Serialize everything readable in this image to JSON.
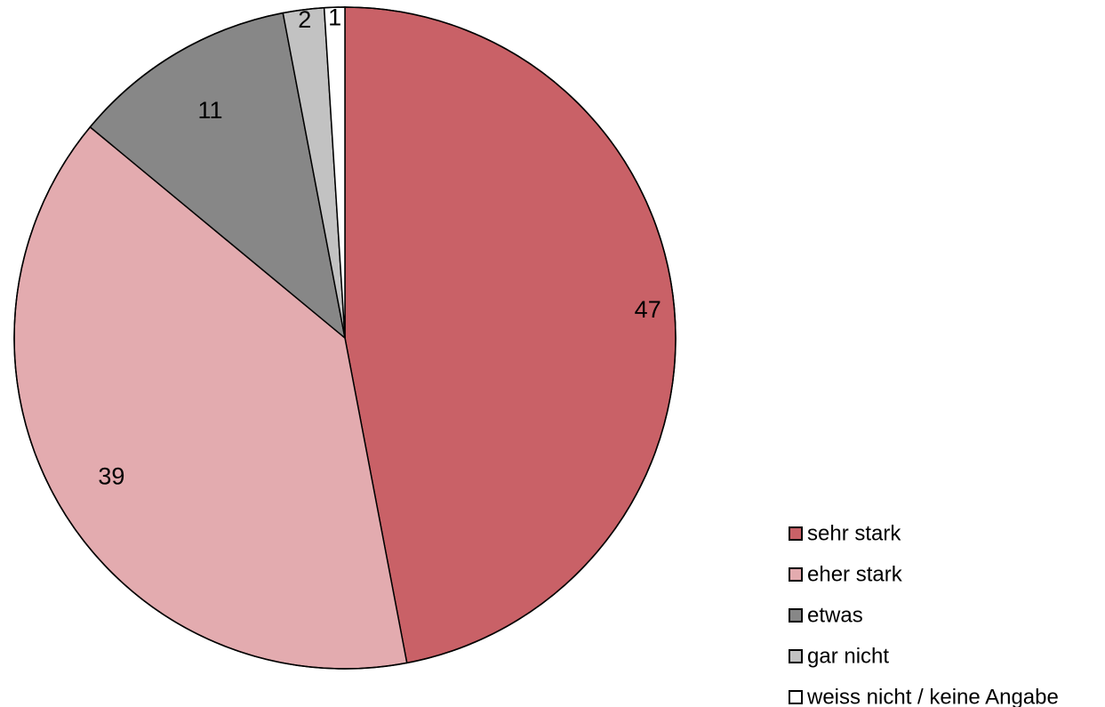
{
  "chart_data": {
    "type": "pie",
    "categories": [
      "sehr stark",
      "eher stark",
      "etwas",
      "gar nicht",
      "weiss nicht / keine Angabe"
    ],
    "values": [
      47,
      39,
      11,
      2,
      1
    ],
    "data_labels": [
      "47",
      "39",
      "11",
      "2",
      "1"
    ],
    "colors": [
      "#c96167",
      "#e3abaf",
      "#878787",
      "#c2c2c2",
      "#ffffff"
    ],
    "legend_position": "bottom-right",
    "start_angle": "12 o'clock",
    "direction": "clockwise"
  }
}
